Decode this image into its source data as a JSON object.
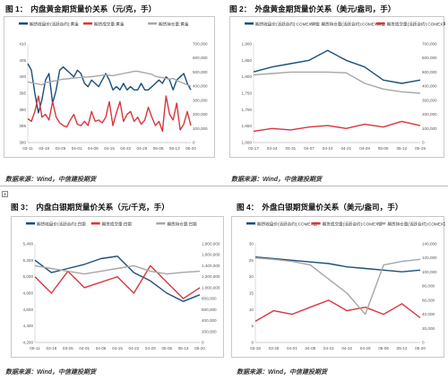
{
  "figures": [
    {
      "id": "f1",
      "label": "图 1：",
      "title": "内盘黄金期货量价关系（元/克，手）",
      "source": "数据来源：Wind，中信建投期货",
      "legend": [
        "期货收盘价(活跃合约):黄金",
        "期货成交量:黄金",
        "期货持仓量:黄金"
      ],
      "colors": [
        "#1a4f7a",
        "#d9363e",
        "#a6a6a6"
      ],
      "y_left_ticks": [
        "410",
        "405",
        "400",
        "395",
        "390",
        "385",
        "380"
      ],
      "y_right_ticks": [
        "700,000",
        "600,000",
        "500,000",
        "400,000",
        "300,000",
        "200,000",
        "100,000",
        "0"
      ],
      "x_ticks": [
        "03-11",
        "03-18",
        "03-25",
        "04-01",
        "04-08",
        "04-15",
        "04-22",
        "04-29",
        "05-06",
        "05-13",
        "05-20"
      ]
    },
    {
      "id": "f2",
      "label": "图 2：",
      "title": "外盘黄金期货量价关系（美元/盎司，手）",
      "source": "数据来源：Wind，中信建投期货",
      "legend": [
        "期货收盘价(活跃合约):COMEX黄金",
        "期货持仓量(活跃合约):COMEX黄金",
        "期货成交量(活跃合约):COMEX黄金"
      ],
      "colors": [
        "#1a4f7a",
        "#a6a6a6",
        "#d9363e"
      ],
      "y_left_ticks": [
        "1,900",
        "1,850",
        "1,800",
        "1,750",
        "1,700",
        "1,650",
        "1,600"
      ],
      "y_right_ticks": [
        "700,000",
        "600,000",
        "500,000",
        "400,000",
        "300,000",
        "200,000",
        "100,000",
        "0"
      ],
      "x_ticks": [
        "03-17",
        "03-24",
        "03-31",
        "04-07",
        "04-14",
        "04-21",
        "04-28",
        "05-05",
        "05-12",
        "05-19"
      ]
    },
    {
      "id": "f3",
      "label": "图 3：",
      "title": "内盘白银期货量价关系（元/千克，手）",
      "source": "数据来源：Wind，中信建投期货",
      "legend": [
        "期货收盘价(活跃合约):白银",
        "期货成交量:白银",
        "期货持仓量:白银"
      ],
      "colors": [
        "#1a4f7a",
        "#d9363e",
        "#a6a6a6"
      ],
      "y_left_ticks": [
        "5,400",
        "5,200",
        "5,000",
        "4,800",
        "4,600",
        "4,400",
        "4,200"
      ],
      "y_right_ticks": [
        "1,800,000",
        "1,600,000",
        "1,400,000",
        "1,200,000",
        "1,000,000",
        "800,000",
        "600,000",
        "400,000",
        "200,000",
        "0"
      ],
      "x_ticks": [
        "05-11",
        "03-18",
        "03-25",
        "04-01",
        "04-08",
        "04-15",
        "04-22",
        "04-29",
        "05-06",
        "05-13",
        "05-20"
      ]
    },
    {
      "id": "f4",
      "label": "图 4：",
      "title": "外盘白银期货量价关系（美元/盎司，手）",
      "source": "数据来源：Wind，中信建投期货",
      "legend": [
        "期货收盘价(活跃合约):COMEX银",
        "期货成交量(活跃合约):COMEX银",
        "期货持仓量(活跃合约):COMEX银"
      ],
      "colors": [
        "#1a4f7a",
        "#d9363e",
        "#a6a6a6"
      ],
      "y_left_ticks": [
        "30",
        "25",
        "20",
        "15",
        "10",
        "5",
        "0"
      ],
      "y_right_ticks": [
        "140,000",
        "120,000",
        "100,000",
        "80,000",
        "60,000",
        "40,000",
        "20,000",
        "0"
      ],
      "x_ticks": [
        "03-18",
        "03-25",
        "04-01",
        "04-08",
        "04-15",
        "04-22",
        "04-29",
        "05-06",
        "05-13",
        "05-20"
      ]
    }
  ],
  "chart_data": [
    {
      "type": "line",
      "title": "内盘黄金期货量价关系（元/克，手）",
      "x": [
        "03-11",
        "03-12",
        "03-13",
        "03-14",
        "03-15",
        "03-18",
        "03-19",
        "03-20",
        "03-21",
        "03-22",
        "03-25",
        "03-26",
        "03-27",
        "03-28",
        "03-29",
        "04-01",
        "04-02",
        "04-03",
        "04-04",
        "04-08",
        "04-09",
        "04-10",
        "04-11",
        "04-12",
        "04-15",
        "04-16",
        "04-17",
        "04-18",
        "04-19",
        "04-22",
        "04-23",
        "04-24",
        "04-25",
        "04-26",
        "04-29",
        "04-30",
        "05-06",
        "05-07",
        "05-08",
        "05-09",
        "05-10",
        "05-13",
        "05-14",
        "05-15",
        "05-16",
        "05-17",
        "05-20"
      ],
      "ylim": [
        380,
        410
      ],
      "ylim_right": [
        0,
        700000
      ],
      "series": [
        {
          "name": "期货收盘价(活跃合约):黄金",
          "axis": "left",
          "values": [
            404,
            402,
            395,
            389,
            393,
            399,
            401,
            392,
            396,
            402,
            403,
            402,
            401,
            400,
            402,
            401,
            398,
            397,
            399,
            398,
            397,
            399,
            401,
            399,
            396,
            397,
            396,
            398,
            396,
            397,
            396,
            396,
            398,
            396,
            396,
            397,
            398,
            399,
            398,
            400,
            399,
            396,
            399,
            400,
            401,
            398,
            396
          ]
        },
        {
          "name": "期货成交量:黄金",
          "axis": "left_scaled",
          "values": [
            170000,
            150000,
            220000,
            330000,
            180000,
            200000,
            160000,
            290000,
            180000,
            140000,
            120000,
            110000,
            160000,
            200000,
            130000,
            120000,
            150000,
            120000,
            220000,
            150000,
            160000,
            140000,
            180000,
            290000,
            120000,
            210000,
            290000,
            150000,
            200000,
            220000,
            150000,
            180000,
            130000,
            160000,
            250000,
            180000,
            120000,
            150000,
            80000,
            330000,
            200000,
            160000,
            280000,
            90000,
            130000,
            220000,
            120000
          ]
        },
        {
          "name": "期货持仓量:黄金",
          "axis": "right",
          "values": [
            430000,
            425000,
            420000,
            415000,
            410000,
            425000,
            430000,
            435000,
            440000,
            445000,
            450000,
            452000,
            455000,
            458000,
            460000,
            462000,
            465000,
            466000,
            468000,
            470000,
            475000,
            478000,
            480000,
            478000,
            475000,
            480000,
            485000,
            490000,
            495000,
            500000,
            505000,
            505000,
            500000,
            495000,
            490000,
            485000,
            470000,
            465000,
            460000,
            455000,
            450000,
            455000,
            440000,
            430000,
            420000,
            410000,
            400000
          ]
        }
      ]
    },
    {
      "type": "line",
      "title": "外盘黄金期货量价关系（美元/盎司，手）",
      "x": [
        "03-17",
        "03-24",
        "03-31",
        "04-07",
        "04-14",
        "04-21",
        "04-28",
        "05-05",
        "05-12",
        "05-19"
      ],
      "ylim": [
        1600,
        1900
      ],
      "ylim_right": [
        0,
        700000
      ],
      "series": [
        {
          "name": "期货收盘价(活跃合约):COMEX黄金",
          "axis": "left",
          "values": [
            1815,
            1830,
            1840,
            1850,
            1880,
            1850,
            1830,
            1790,
            1780,
            1790
          ]
        },
        {
          "name": "期货持仓量(活跃合约):COMEX黄金",
          "axis": "right",
          "values": [
            480000,
            490000,
            500000,
            500000,
            500000,
            495000,
            420000,
            380000,
            360000,
            350000
          ]
        },
        {
          "name": "期货成交量(活跃合约):COMEX黄金",
          "axis": "right",
          "values": [
            80000,
            100000,
            90000,
            110000,
            120000,
            100000,
            130000,
            110000,
            150000,
            120000
          ]
        }
      ]
    },
    {
      "type": "line",
      "title": "内盘白银期货量价关系（元/千克，手）",
      "x": [
        "05-11",
        "03-18",
        "03-25",
        "04-01",
        "04-08",
        "04-15",
        "04-22",
        "04-29",
        "05-06",
        "05-13",
        "05-20"
      ],
      "ylim": [
        4200,
        5400
      ],
      "ylim_right": [
        0,
        1800000
      ],
      "series": [
        {
          "name": "期货收盘价(活跃合约):白银",
          "axis": "left",
          "values": [
            5200,
            5050,
            5100,
            5150,
            5220,
            5250,
            5050,
            4950,
            4800,
            4700,
            4780
          ]
        },
        {
          "name": "期货成交量:白银",
          "axis": "right",
          "values": [
            1200000,
            900000,
            1300000,
            1000000,
            1100000,
            1200000,
            900000,
            1400000,
            1100000,
            800000,
            1000000
          ]
        },
        {
          "name": "期货持仓量:白银",
          "axis": "right",
          "values": [
            1400000,
            1350000,
            1300000,
            1250000,
            1300000,
            1350000,
            1400000,
            1300000,
            1250000,
            1280000,
            1300000
          ]
        }
      ]
    },
    {
      "type": "line",
      "title": "外盘白银期货量价关系（美元/盎司，手）",
      "x": [
        "03-18",
        "03-25",
        "04-01",
        "04-08",
        "04-15",
        "04-22",
        "04-29",
        "05-06",
        "05-13",
        "05-20"
      ],
      "ylim": [
        0,
        30
      ],
      "ylim_right": [
        0,
        140000
      ],
      "series": [
        {
          "name": "期货收盘价(活跃合约):COMEX银",
          "axis": "left",
          "values": [
            26,
            25.5,
            25,
            24.5,
            24,
            23,
            22.5,
            22,
            21.5,
            22
          ]
        },
        {
          "name": "期货成交量(活跃合约):COMEX银",
          "axis": "right",
          "values": [
            30000,
            45000,
            40000,
            50000,
            60000,
            45000,
            50000,
            40000,
            55000,
            35000
          ]
        },
        {
          "name": "期货持仓量(活跃合约):COMEX银",
          "axis": "right",
          "values": [
            120000,
            118000,
            115000,
            110000,
            90000,
            70000,
            40000,
            110000,
            115000,
            118000
          ]
        }
      ]
    }
  ]
}
